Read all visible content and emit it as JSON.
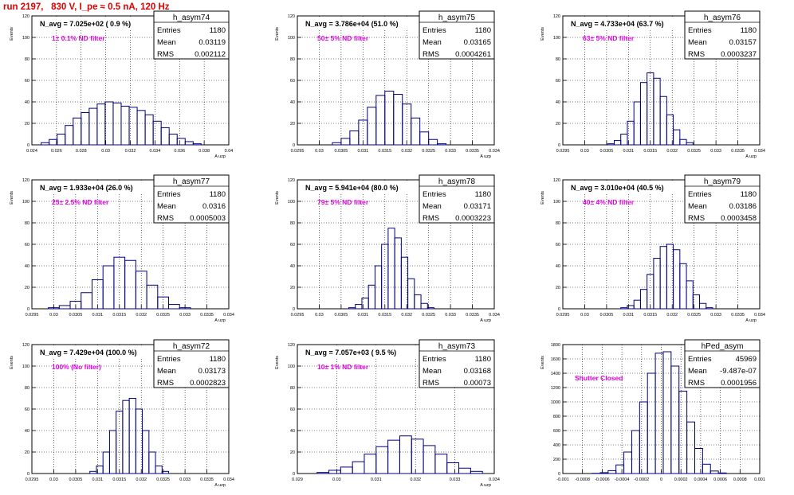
{
  "run_title": "run 2197,   830 V, I_pe ≈ 0.5 nA, 120 Hz",
  "colors": {
    "histogram": "#00007f",
    "note": "#e000e0",
    "run_title": "#e00000"
  },
  "stat_labels": {
    "entries": "Entries",
    "mean": "Mean",
    "rms": "RMS"
  },
  "chart_data": [
    {
      "type": "bar",
      "name": "h_asym74",
      "title": "N_avg = 7.025e+02 ( 0.9 %)",
      "note": "1± 0.1% ND filter",
      "entries": "1180",
      "mean": "0.03119",
      "rms": "0.002112",
      "xlabel": "A uzp",
      "ylabel": "Events",
      "xlim": [
        0.024,
        0.04
      ],
      "ylim": [
        0,
        120
      ],
      "xticks": [
        "0.024",
        "0.026",
        "0.028",
        "0.03",
        "0.032",
        "0.034",
        "0.036",
        "0.038",
        "0.04"
      ],
      "yticks": [
        "0",
        "20",
        "40",
        "60",
        "80",
        "100",
        "120"
      ],
      "grid": true,
      "stats_box": "top-right",
      "x": [
        0.02508,
        0.02573,
        0.02638,
        0.02703,
        0.02768,
        0.02833,
        0.02898,
        0.02963,
        0.03028,
        0.03093,
        0.03158,
        0.03223,
        0.03288,
        0.03353,
        0.03418,
        0.03483,
        0.03548,
        0.03613,
        0.03678,
        0.03743
      ],
      "values": [
        2,
        5,
        10,
        18,
        25,
        30,
        34,
        38,
        40,
        39,
        36,
        35,
        32,
        28,
        22,
        16,
        10,
        6,
        3,
        1
      ]
    },
    {
      "type": "bar",
      "name": "h_asym75",
      "title": "N_avg = 3.786e+04 (51.0 %)",
      "note": "50± 5% ND filter",
      "entries": "1180",
      "mean": "0.03165",
      "rms": "0.0004261",
      "xlabel": "A uzp",
      "ylabel": "Events",
      "xlim": [
        0.0295,
        0.034
      ],
      "ylim": [
        0,
        120
      ],
      "xticks": [
        "0.0295",
        "0.03",
        "0.0305",
        "0.031",
        "0.0315",
        "0.032",
        "0.0325",
        "0.033",
        "0.0335",
        "0.034"
      ],
      "yticks": [
        "0",
        "20",
        "40",
        "60",
        "80",
        "100",
        "120"
      ],
      "grid": true,
      "stats_box": "top-right",
      "x": [
        0.0304,
        0.0306,
        0.0308,
        0.031,
        0.0312,
        0.0314,
        0.0316,
        0.0318,
        0.032,
        0.0322,
        0.0324,
        0.0326,
        0.0328
      ],
      "values": [
        2,
        6,
        13,
        23,
        35,
        46,
        50,
        47,
        38,
        25,
        12,
        5,
        1
      ]
    },
    {
      "type": "bar",
      "name": "h_asym76",
      "title": "N_avg = 4.733e+04 (63.7 %)",
      "note": "63± 5% ND filter",
      "entries": "1180",
      "mean": "0.03157",
      "rms": "0.0003237",
      "xlabel": "A uzp",
      "ylabel": "Events",
      "xlim": [
        0.0295,
        0.034
      ],
      "ylim": [
        0,
        120
      ],
      "xticks": [
        "0.0295",
        "0.03",
        "0.0305",
        "0.031",
        "0.0315",
        "0.032",
        "0.0325",
        "0.033",
        "0.0335",
        "0.034"
      ],
      "yticks": [
        "0",
        "20",
        "40",
        "60",
        "80",
        "100",
        "120"
      ],
      "grid": true,
      "stats_box": "top-right",
      "x": [
        0.0306,
        0.03075,
        0.0309,
        0.03105,
        0.0312,
        0.03135,
        0.0315,
        0.03165,
        0.0318,
        0.03195,
        0.0321,
        0.03225,
        0.0324
      ],
      "values": [
        1,
        4,
        10,
        22,
        40,
        58,
        67,
        62,
        45,
        28,
        14,
        5,
        2
      ]
    },
    {
      "type": "bar",
      "name": "h_asym77",
      "title": "N_avg = 1.933e+04 (26.0 %)",
      "note": "25± 2.5% ND filter",
      "entries": "1180",
      "mean": "0.0316",
      "rms": "0.0005003",
      "xlabel": "A uzp",
      "ylabel": "Events",
      "xlim": [
        0.0295,
        0.034
      ],
      "ylim": [
        0,
        120
      ],
      "xticks": [
        "0.0295",
        "0.03",
        "0.0305",
        "0.031",
        "0.0315",
        "0.032",
        "0.0325",
        "0.033",
        "0.0335",
        "0.034"
      ],
      "yticks": [
        "0",
        "20",
        "40",
        "60",
        "80",
        "100",
        "120"
      ],
      "grid": true,
      "stats_box": "top-right",
      "x": [
        0.03,
        0.03025,
        0.0305,
        0.03075,
        0.031,
        0.03125,
        0.0315,
        0.03175,
        0.032,
        0.03225,
        0.0325,
        0.03275,
        0.033
      ],
      "values": [
        1,
        3,
        7,
        15,
        27,
        40,
        48,
        45,
        35,
        22,
        11,
        4,
        1
      ]
    },
    {
      "type": "bar",
      "name": "h_asym78",
      "title": "N_avg = 5.941e+04 (80.0 %)",
      "note": "79± 5% ND filter",
      "entries": "1180",
      "mean": "0.03171",
      "rms": "0.0003223",
      "xlabel": "A uzp",
      "ylabel": "Events",
      "xlim": [
        0.0295,
        0.034
      ],
      "ylim": [
        0,
        120
      ],
      "xticks": [
        "0.0295",
        "0.03",
        "0.0305",
        "0.031",
        "0.0315",
        "0.032",
        "0.0325",
        "0.033",
        "0.0335",
        "0.034"
      ],
      "yticks": [
        "0",
        "20",
        "40",
        "60",
        "80",
        "100",
        "120"
      ],
      "grid": true,
      "stats_box": "top-right",
      "x": [
        0.03075,
        0.0309,
        0.03105,
        0.0312,
        0.03135,
        0.0315,
        0.03165,
        0.0318,
        0.03195,
        0.0321,
        0.03225,
        0.0324,
        0.03255
      ],
      "values": [
        1,
        4,
        10,
        22,
        40,
        60,
        75,
        66,
        48,
        28,
        13,
        5,
        1
      ]
    },
    {
      "type": "bar",
      "name": "h_asym79",
      "title": "N_avg = 3.010e+04 (40.5 %)",
      "note": "40± 4% ND filter",
      "entries": "1180",
      "mean": "0.03186",
      "rms": "0.0003458",
      "xlabel": "A uzp",
      "ylabel": "Events",
      "xlim": [
        0.0295,
        0.034
      ],
      "ylim": [
        0,
        120
      ],
      "xticks": [
        "0.0295",
        "0.03",
        "0.0305",
        "0.031",
        "0.0315",
        "0.032",
        "0.0325",
        "0.033",
        "0.0335",
        "0.034"
      ],
      "yticks": [
        "0",
        "20",
        "40",
        "60",
        "80",
        "100",
        "120"
      ],
      "grid": true,
      "stats_box": "top-right",
      "x": [
        0.0309,
        0.03105,
        0.0312,
        0.03135,
        0.0315,
        0.03165,
        0.0318,
        0.03195,
        0.0321,
        0.03225,
        0.0324,
        0.03255,
        0.0327,
        0.03285
      ],
      "values": [
        1,
        3,
        8,
        18,
        32,
        47,
        58,
        60,
        55,
        42,
        26,
        13,
        5,
        1
      ]
    },
    {
      "type": "bar",
      "name": "h_asym72",
      "title": "N_avg = 7.429e+04 (100.0 %)",
      "note": "100% (No filter)",
      "entries": "1180",
      "mean": "0.03173",
      "rms": "0.0002823",
      "xlabel": "A uzp",
      "ylabel": "Events",
      "xlim": [
        0.0295,
        0.034
      ],
      "ylim": [
        0,
        120
      ],
      "xticks": [
        "0.0295",
        "0.03",
        "0.0305",
        "0.031",
        "0.0315",
        "0.032",
        "0.0325",
        "0.033",
        "0.0335",
        "0.034"
      ],
      "yticks": [
        "0",
        "20",
        "40",
        "60",
        "80",
        "100",
        "120"
      ],
      "grid": true,
      "stats_box": "top-right",
      "x": [
        0.0309,
        0.03105,
        0.0312,
        0.03135,
        0.0315,
        0.03165,
        0.0318,
        0.03195,
        0.0321,
        0.03225,
        0.0324,
        0.03255
      ],
      "values": [
        2,
        7,
        20,
        40,
        58,
        68,
        70,
        60,
        40,
        20,
        7,
        2
      ]
    },
    {
      "type": "bar",
      "name": "h_asym73",
      "title": "N_avg = 7.057e+03 ( 9.5 %)",
      "note": "10± 1% ND filter",
      "entries": "1180",
      "mean": "0.03168",
      "rms": "0.00073",
      "xlabel": "A uzp",
      "ylabel": "Events",
      "xlim": [
        0.029,
        0.034
      ],
      "ylim": [
        0,
        120
      ],
      "xticks": [
        "0.029",
        "0.03",
        "0.031",
        "0.032",
        "0.033",
        "0.034"
      ],
      "yticks": [
        "0",
        "20",
        "40",
        "60",
        "80",
        "100",
        "120"
      ],
      "grid": true,
      "stats_box": "top-right",
      "x": [
        0.02965,
        0.02995,
        0.03025,
        0.03055,
        0.03085,
        0.03115,
        0.03145,
        0.03175,
        0.03205,
        0.03235,
        0.03265,
        0.03295,
        0.03325,
        0.03355
      ],
      "values": [
        1,
        3,
        6,
        11,
        18,
        25,
        31,
        35,
        32,
        26,
        18,
        10,
        5,
        2
      ]
    },
    {
      "type": "bar",
      "name": "hPed_asym",
      "title": "",
      "note": "Shutter Closed",
      "entries": "45969",
      "mean": "-9.487e-07",
      "rms": "0.0001956",
      "xlabel": "",
      "ylabel": "Events",
      "xlim": [
        -0.001,
        0.001
      ],
      "ylim": [
        0,
        1800
      ],
      "xticks": [
        "-0.001",
        "-0.0008",
        "-0.0006",
        "-0.0004",
        "-0.0002",
        "0",
        "0.0002",
        "0.0004",
        "0.0006",
        "0.0008",
        "0.001"
      ],
      "yticks": [
        "0",
        "200",
        "400",
        "600",
        "800",
        "1000",
        "1200",
        "1400",
        "1600",
        "1800"
      ],
      "grid": true,
      "stats_box": "top-right",
      "x": [
        -0.00066,
        -0.00058,
        -0.0005,
        -0.00042,
        -0.00034,
        -0.00026,
        -0.00018,
        -0.0001,
        -2e-05,
        6e-05,
        0.00014,
        0.00022,
        0.0003,
        0.00038,
        0.00046,
        0.00054,
        0.00062
      ],
      "values": [
        3,
        12,
        40,
        120,
        300,
        600,
        1000,
        1400,
        1680,
        1700,
        1500,
        1150,
        720,
        350,
        130,
        35,
        8
      ]
    }
  ]
}
